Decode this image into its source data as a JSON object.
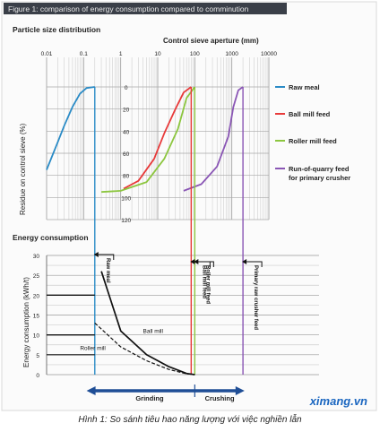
{
  "figure_title": "Figure 1: comparison of energy consumption compared to comminution",
  "watermark": "ximang.vn",
  "caption": "Hình 1: So sánh tiêu hao năng lượng với việc nghiền lẫn",
  "colors": {
    "raw_meal": "#2a8bc6",
    "ball_mill": "#e83a3a",
    "roller_mill": "#8cc63f",
    "primary_crusher": "#8a56b5",
    "title_bar": "#3a3f48",
    "watermark": "#1a66c0"
  },
  "chart_data": [
    {
      "type": "line",
      "title": "Particle size distribution",
      "xlabel": "Control sieve aperture (mm)",
      "ylabel": "Residue on control sieve (%)",
      "x_scale": "log",
      "xlim": [
        0.01,
        10000
      ],
      "ylim": [
        0,
        120
      ],
      "y_inverted": true,
      "x_ticks": [
        "0.01",
        "0.1",
        "1",
        "10",
        "100",
        "1000",
        "10000"
      ],
      "y_ticks": [
        "0",
        "20",
        "40",
        "60",
        "80",
        "100",
        "120"
      ],
      "series": [
        {
          "name": "Raw meal",
          "points": [
            [
              0.01,
              75
            ],
            [
              0.02,
              50
            ],
            [
              0.03,
              35
            ],
            [
              0.05,
              18
            ],
            [
              0.08,
              6
            ],
            [
              0.12,
              1
            ],
            [
              0.2,
              0
            ]
          ]
        },
        {
          "name": "Ball mill feed",
          "points": [
            [
              1.2,
              92
            ],
            [
              3,
              85
            ],
            [
              8,
              65
            ],
            [
              15,
              42
            ],
            [
              30,
              20
            ],
            [
              50,
              5
            ],
            [
              80,
              0
            ]
          ]
        },
        {
          "name": "Roller mill feed",
          "points": [
            [
              0.3,
              95
            ],
            [
              1,
              94
            ],
            [
              5,
              86
            ],
            [
              15,
              65
            ],
            [
              35,
              38
            ],
            [
              60,
              10
            ],
            [
              100,
              0
            ]
          ]
        },
        {
          "name": "Run-of-quarry feed for primary crusher",
          "points": [
            [
              50,
              94
            ],
            [
              150,
              88
            ],
            [
              400,
              72
            ],
            [
              800,
              45
            ],
            [
              1100,
              18
            ],
            [
              1500,
              3
            ],
            [
              2000,
              0
            ]
          ]
        }
      ],
      "legend_position": "right"
    },
    {
      "type": "line",
      "title": "Energy consumption",
      "ylabel": "Energy consumption (kWh/t)",
      "ylim": [
        0,
        30
      ],
      "y_ticks": [
        "0",
        "5",
        "10",
        "15",
        "20",
        "25",
        "30"
      ],
      "series": [
        {
          "name": "Ball mill",
          "style": "solid",
          "points": [
            [
              0.3,
              26
            ],
            [
              1,
              11
            ],
            [
              5,
              5
            ],
            [
              20,
              2
            ],
            [
              60,
              0.3
            ],
            [
              100,
              0
            ]
          ]
        },
        {
          "name": "Roller mill",
          "style": "dashed",
          "points": [
            [
              0.2,
              13
            ],
            [
              1,
              7
            ],
            [
              5,
              3.5
            ],
            [
              20,
              1.3
            ],
            [
              60,
              0.2
            ],
            [
              100,
              0
            ]
          ]
        }
      ],
      "vertical_labels": [
        "Raw meal",
        "Ball mill feed",
        "Roller mill feed",
        "Primary raw crusher feed"
      ],
      "arrows": [
        {
          "label": "Grinding"
        },
        {
          "label": "Crushing"
        }
      ]
    }
  ]
}
